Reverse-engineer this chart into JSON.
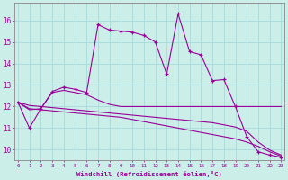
{
  "xlabel": "Windchill (Refroidissement éolien,°C)",
  "bg_color": "#cceee8",
  "grid_color": "#aadddd",
  "line_color": "#990099",
  "x_ticks": [
    0,
    1,
    2,
    3,
    4,
    5,
    6,
    7,
    8,
    9,
    10,
    11,
    12,
    13,
    14,
    15,
    16,
    17,
    18,
    19,
    20,
    21,
    22,
    23
  ],
  "y_ticks": [
    10,
    11,
    12,
    13,
    14,
    15,
    16
  ],
  "ylim": [
    9.5,
    16.8
  ],
  "xlim": [
    -0.3,
    23.3
  ],
  "series1": [
    12.2,
    11.0,
    11.9,
    12.7,
    12.9,
    12.8,
    12.65,
    15.8,
    15.55,
    15.5,
    15.45,
    15.3,
    15.0,
    13.5,
    16.3,
    14.55,
    14.4,
    13.2,
    13.25,
    12.0,
    10.6,
    9.9,
    9.75,
    9.65
  ],
  "series2": [
    12.2,
    11.85,
    11.9,
    12.65,
    12.75,
    12.65,
    12.55,
    12.3,
    12.1,
    12.0,
    12.0,
    12.0,
    12.0,
    12.0,
    12.0,
    12.0,
    12.0,
    12.0,
    12.0,
    12.0,
    12.0,
    12.0,
    12.0,
    12.0
  ],
  "series3": [
    12.2,
    11.9,
    11.85,
    11.8,
    11.75,
    11.7,
    11.65,
    11.6,
    11.55,
    11.5,
    11.4,
    11.3,
    11.2,
    11.1,
    11.0,
    10.9,
    10.8,
    10.7,
    10.6,
    10.5,
    10.35,
    10.15,
    9.9,
    9.7
  ],
  "series4": [
    12.2,
    12.05,
    12.0,
    11.95,
    11.9,
    11.85,
    11.8,
    11.75,
    11.7,
    11.65,
    11.6,
    11.55,
    11.5,
    11.45,
    11.4,
    11.35,
    11.3,
    11.25,
    11.15,
    11.05,
    10.85,
    10.35,
    9.98,
    9.75
  ]
}
